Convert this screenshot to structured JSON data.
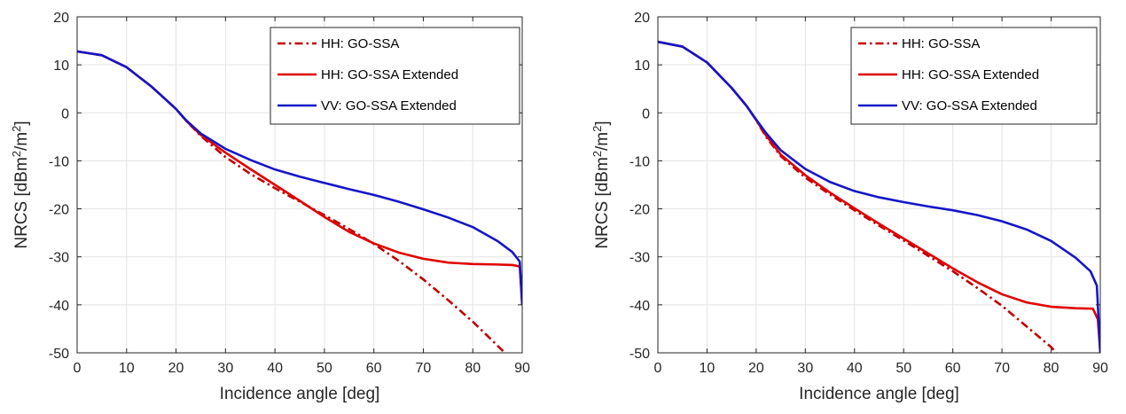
{
  "chart_data": [
    {
      "type": "line",
      "title": "",
      "xlabel": "Incidence angle [deg]",
      "ylabel": {
        "main": "NRCS [dBm",
        "sup1": "2",
        "mid": "/m",
        "sup2": "2",
        "end": "]"
      },
      "xlim": [
        0,
        90
      ],
      "ylim": [
        -50,
        20
      ],
      "xticks": [
        "0",
        "10",
        "20",
        "30",
        "40",
        "50",
        "60",
        "70",
        "80",
        "90"
      ],
      "yticks": [
        "-50",
        "-40",
        "-30",
        "-20",
        "-10",
        "0",
        "10",
        "20"
      ],
      "grid": true,
      "legend_position": "top-right",
      "series": [
        {
          "name": "HH: GO-SSA",
          "color": "#c00000",
          "style": "dashdot",
          "x": [
            0,
            5,
            10,
            15,
            18,
            20,
            22,
            25,
            30,
            35,
            40,
            45,
            50,
            55,
            60,
            65,
            70,
            75,
            80,
            85,
            86.5
          ],
          "y": [
            12.8,
            12,
            9.5,
            5.5,
            2.7,
            0.8,
            -1.6,
            -4.8,
            -9.2,
            -12.7,
            -15.7,
            -18.5,
            -21.3,
            -24.2,
            -27.3,
            -30.8,
            -34.7,
            -39,
            -43.5,
            -48.5,
            -50
          ]
        },
        {
          "name": "HH: GO-SSA Extended",
          "color": "#e00000",
          "style": "solid",
          "x": [
            0,
            5,
            10,
            15,
            18,
            20,
            22,
            25,
            30,
            35,
            40,
            45,
            50,
            55,
            60,
            65,
            70,
            75,
            80,
            85,
            88,
            89.5,
            90
          ],
          "y": [
            12.8,
            12,
            9.5,
            5.5,
            2.7,
            0.8,
            -1.6,
            -4.6,
            -8.3,
            -11.7,
            -15,
            -18.3,
            -21.7,
            -24.8,
            -27.2,
            -29.1,
            -30.4,
            -31.2,
            -31.5,
            -31.6,
            -31.7,
            -32,
            -40
          ]
        },
        {
          "name": "VV: GO-SSA Extended",
          "color": "#1515c8",
          "style": "solid",
          "x": [
            0,
            5,
            10,
            15,
            18,
            20,
            22,
            25,
            30,
            35,
            40,
            45,
            50,
            55,
            60,
            65,
            70,
            75,
            80,
            85,
            88,
            89.5,
            90
          ],
          "y": [
            12.8,
            12,
            9.5,
            5.5,
            2.7,
            0.8,
            -1.5,
            -4.3,
            -7.5,
            -9.8,
            -11.8,
            -13.3,
            -14.6,
            -15.9,
            -17.1,
            -18.5,
            -20.1,
            -21.8,
            -23.8,
            -26.7,
            -29,
            -31,
            -40
          ]
        }
      ]
    },
    {
      "type": "line",
      "title": "",
      "xlabel": "Incidence angle [deg]",
      "ylabel": {
        "main": "NRCS [dBm",
        "sup1": "2",
        "mid": "/m",
        "sup2": "2",
        "end": "]"
      },
      "xlim": [
        0,
        90
      ],
      "ylim": [
        -50,
        20
      ],
      "xticks": [
        "0",
        "10",
        "20",
        "30",
        "40",
        "50",
        "60",
        "70",
        "80",
        "90"
      ],
      "yticks": [
        "-50",
        "-40",
        "-30",
        "-20",
        "-10",
        "0",
        "10",
        "20"
      ],
      "grid": true,
      "legend_position": "top-right",
      "series": [
        {
          "name": "HH: GO-SSA",
          "color": "#c00000",
          "style": "dashdot",
          "x": [
            0,
            5,
            10,
            15,
            18,
            20,
            22,
            25,
            30,
            35,
            40,
            45,
            50,
            55,
            60,
            65,
            70,
            75,
            80,
            81
          ],
          "y": [
            14.8,
            13.8,
            10.5,
            5.2,
            1.5,
            -1.5,
            -5,
            -9,
            -13.5,
            -17,
            -20.3,
            -23.5,
            -26.6,
            -29.8,
            -33,
            -36.5,
            -40.2,
            -44.5,
            -48.8,
            -50
          ]
        },
        {
          "name": "HH: GO-SSA Extended",
          "color": "#e00000",
          "style": "solid",
          "x": [
            0,
            5,
            10,
            15,
            18,
            20,
            22,
            25,
            30,
            35,
            40,
            45,
            50,
            55,
            60,
            65,
            70,
            75,
            80,
            85,
            88.5,
            89.5,
            90
          ],
          "y": [
            14.8,
            13.8,
            10.5,
            5.2,
            1.5,
            -1.5,
            -4.7,
            -8.7,
            -13,
            -16.6,
            -19.9,
            -23.1,
            -26.2,
            -29.3,
            -32.4,
            -35.3,
            -37.8,
            -39.5,
            -40.4,
            -40.7,
            -40.8,
            -43,
            -50
          ]
        },
        {
          "name": "VV: GO-SSA Extended",
          "color": "#1515c8",
          "style": "solid",
          "x": [
            0,
            5,
            10,
            15,
            18,
            20,
            22,
            25,
            30,
            35,
            40,
            45,
            50,
            55,
            60,
            65,
            70,
            75,
            80,
            85,
            88,
            89.3,
            90
          ],
          "y": [
            14.8,
            13.8,
            10.5,
            5.2,
            1.5,
            -1.4,
            -4.2,
            -7.8,
            -11.7,
            -14.4,
            -16.3,
            -17.6,
            -18.6,
            -19.5,
            -20.3,
            -21.3,
            -22.6,
            -24.3,
            -26.7,
            -30.2,
            -33,
            -36,
            -50
          ]
        }
      ]
    }
  ]
}
